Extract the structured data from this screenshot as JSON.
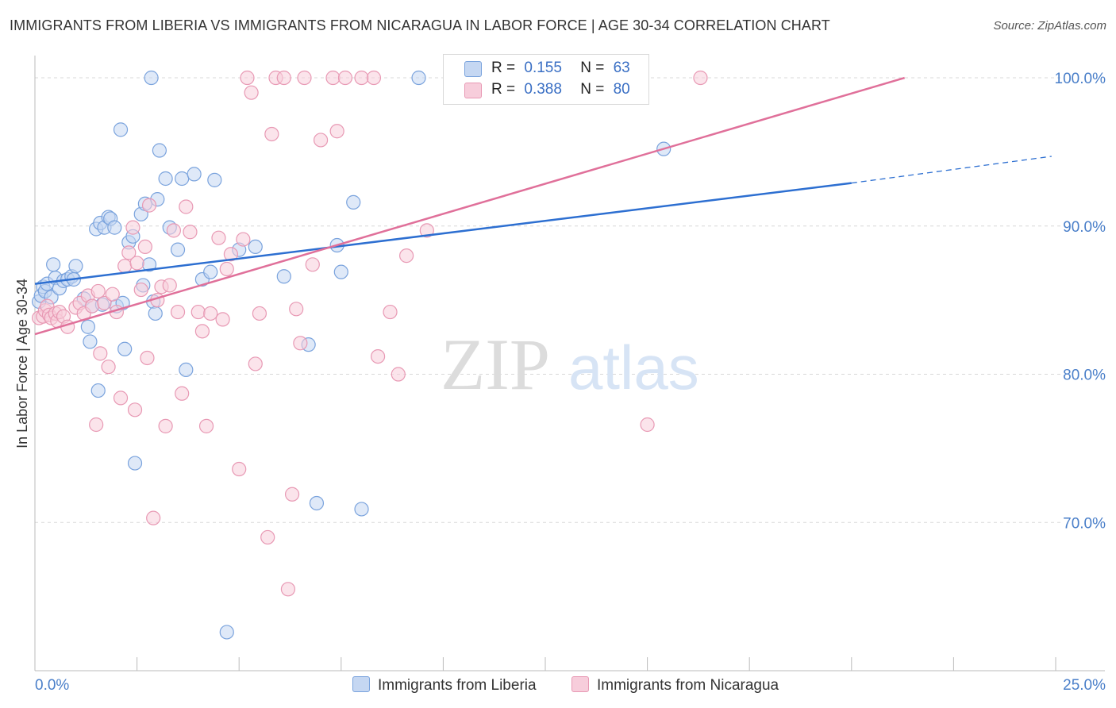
{
  "header": {
    "title": "IMMIGRANTS FROM LIBERIA VS IMMIGRANTS FROM NICARAGUA IN LABOR FORCE | AGE 30-34 CORRELATION CHART",
    "source": "Source: ZipAtlas.com"
  },
  "watermark": {
    "zip": "ZIP",
    "atlas": "atlas"
  },
  "legend": {
    "r_label": "R =",
    "n_label": "N =",
    "liberia": {
      "r": "0.155",
      "n": "63"
    },
    "nicaragua": {
      "r": "0.388",
      "n": "80"
    }
  },
  "colors": {
    "liberia_fill": "#c5d7f2",
    "liberia_stroke": "#7aa3dd",
    "liberia_line": "#2d6fd1",
    "nicaragua_fill": "#f7cddb",
    "nicaragua_stroke": "#e899b4",
    "nicaragua_line": "#e0709a",
    "tick_label": "#4a7fc9",
    "grid": "#d8d8d8"
  },
  "chart_data": {
    "type": "scatter",
    "title": "IMMIGRANTS FROM LIBERIA VS IMMIGRANTS FROM NICARAGUA IN LABOR FORCE | AGE 30-34 CORRELATION CHART",
    "xlabel": "",
    "ylabel": "In Labor Force | Age 30-34",
    "xlim": [
      0,
      25
    ],
    "ylim": [
      60,
      101.5
    ],
    "x_tick_labels": [
      "0.0%",
      "25.0%"
    ],
    "y_ticks": [
      70,
      80,
      90,
      100
    ],
    "y_tick_labels": [
      "70.0%",
      "80.0%",
      "90.0%",
      "100.0%"
    ],
    "series": [
      {
        "name": "Immigrants from Liberia",
        "r": 0.155,
        "n": 63,
        "trend": {
          "x0": 0,
          "y0": 86.1,
          "x1": 20,
          "y1": 92.9,
          "dashed_to_x": 24.9,
          "dashed_to_y": 94.7
        },
        "points": [
          [
            0.1,
            84.9
          ],
          [
            0.15,
            85.3
          ],
          [
            0.2,
            85.9
          ],
          [
            0.25,
            85.6
          ],
          [
            0.3,
            86.1
          ],
          [
            0.4,
            85.2
          ],
          [
            0.45,
            87.4
          ],
          [
            0.5,
            86.5
          ],
          [
            0.6,
            85.8
          ],
          [
            0.7,
            86.3
          ],
          [
            0.8,
            86.4
          ],
          [
            0.9,
            86.6
          ],
          [
            0.95,
            86.4
          ],
          [
            1.0,
            87.3
          ],
          [
            1.2,
            85.1
          ],
          [
            1.3,
            83.2
          ],
          [
            1.35,
            82.2
          ],
          [
            1.4,
            84.6
          ],
          [
            1.5,
            89.8
          ],
          [
            1.55,
            78.9
          ],
          [
            1.6,
            90.2
          ],
          [
            1.65,
            84.7
          ],
          [
            1.7,
            89.9
          ],
          [
            1.8,
            90.6
          ],
          [
            1.85,
            90.5
          ],
          [
            1.95,
            89.9
          ],
          [
            2.0,
            84.6
          ],
          [
            2.1,
            96.5
          ],
          [
            2.15,
            84.8
          ],
          [
            2.2,
            81.7
          ],
          [
            2.3,
            88.9
          ],
          [
            2.4,
            89.3
          ],
          [
            2.45,
            74.0
          ],
          [
            2.6,
            90.8
          ],
          [
            2.65,
            86.0
          ],
          [
            2.7,
            91.5
          ],
          [
            2.8,
            87.4
          ],
          [
            2.85,
            100.0
          ],
          [
            2.9,
            84.9
          ],
          [
            2.95,
            84.1
          ],
          [
            3.0,
            91.8
          ],
          [
            3.05,
            95.1
          ],
          [
            3.2,
            93.2
          ],
          [
            3.3,
            89.9
          ],
          [
            3.5,
            88.4
          ],
          [
            3.6,
            93.2
          ],
          [
            3.7,
            80.3
          ],
          [
            3.9,
            93.5
          ],
          [
            4.1,
            86.4
          ],
          [
            4.3,
            86.9
          ],
          [
            4.4,
            93.1
          ],
          [
            4.7,
            62.6
          ],
          [
            5.0,
            88.4
          ],
          [
            5.4,
            88.6
          ],
          [
            6.1,
            86.6
          ],
          [
            6.7,
            82.0
          ],
          [
            6.9,
            71.3
          ],
          [
            7.4,
            88.7
          ],
          [
            7.5,
            86.9
          ],
          [
            7.8,
            91.6
          ],
          [
            8.0,
            70.9
          ],
          [
            9.4,
            100.0
          ],
          [
            15.4,
            95.2
          ]
        ]
      },
      {
        "name": "Immigrants from Nicaragua",
        "r": 0.388,
        "n": 80,
        "trend": {
          "x0": 0,
          "y0": 82.7,
          "x1": 21.3,
          "y1": 100.0
        },
        "points": [
          [
            0.1,
            83.8
          ],
          [
            0.2,
            83.9
          ],
          [
            0.25,
            84.3
          ],
          [
            0.3,
            84.6
          ],
          [
            0.35,
            84.0
          ],
          [
            0.4,
            83.8
          ],
          [
            0.5,
            84.1
          ],
          [
            0.55,
            83.6
          ],
          [
            0.6,
            84.2
          ],
          [
            0.7,
            83.9
          ],
          [
            0.8,
            83.2
          ],
          [
            1.0,
            84.5
          ],
          [
            1.1,
            84.8
          ],
          [
            1.2,
            84.1
          ],
          [
            1.3,
            85.3
          ],
          [
            1.4,
            84.6
          ],
          [
            1.5,
            76.6
          ],
          [
            1.55,
            85.6
          ],
          [
            1.6,
            81.4
          ],
          [
            1.7,
            84.8
          ],
          [
            1.8,
            80.5
          ],
          [
            1.9,
            85.4
          ],
          [
            2.0,
            84.2
          ],
          [
            2.1,
            78.4
          ],
          [
            2.2,
            87.3
          ],
          [
            2.3,
            88.2
          ],
          [
            2.4,
            89.9
          ],
          [
            2.45,
            77.6
          ],
          [
            2.5,
            87.5
          ],
          [
            2.6,
            85.7
          ],
          [
            2.7,
            88.6
          ],
          [
            2.75,
            81.1
          ],
          [
            2.8,
            91.4
          ],
          [
            2.9,
            70.3
          ],
          [
            3.0,
            85.0
          ],
          [
            3.1,
            85.9
          ],
          [
            3.2,
            76.5
          ],
          [
            3.3,
            86.0
          ],
          [
            3.4,
            89.7
          ],
          [
            3.5,
            84.2
          ],
          [
            3.6,
            78.7
          ],
          [
            3.7,
            91.3
          ],
          [
            3.8,
            89.6
          ],
          [
            4.0,
            84.2
          ],
          [
            4.1,
            82.9
          ],
          [
            4.2,
            76.5
          ],
          [
            4.3,
            84.1
          ],
          [
            4.5,
            89.2
          ],
          [
            4.6,
            83.7
          ],
          [
            4.7,
            87.1
          ],
          [
            4.8,
            88.1
          ],
          [
            5.0,
            73.6
          ],
          [
            5.1,
            89.1
          ],
          [
            5.2,
            100.0
          ],
          [
            5.3,
            99.0
          ],
          [
            5.4,
            80.7
          ],
          [
            5.5,
            84.1
          ],
          [
            5.7,
            69.0
          ],
          [
            5.8,
            96.2
          ],
          [
            5.9,
            100.0
          ],
          [
            6.1,
            100.0
          ],
          [
            6.2,
            65.5
          ],
          [
            6.3,
            71.9
          ],
          [
            6.4,
            84.4
          ],
          [
            6.5,
            82.1
          ],
          [
            6.6,
            100.0
          ],
          [
            6.8,
            87.4
          ],
          [
            7.0,
            95.8
          ],
          [
            7.3,
            100.0
          ],
          [
            7.4,
            96.4
          ],
          [
            7.6,
            100.0
          ],
          [
            8.0,
            100.0
          ],
          [
            8.3,
            100.0
          ],
          [
            8.4,
            81.2
          ],
          [
            8.7,
            84.2
          ],
          [
            8.9,
            80.0
          ],
          [
            9.1,
            88.0
          ],
          [
            9.6,
            89.7
          ],
          [
            15.0,
            76.6
          ],
          [
            16.3,
            100.0
          ]
        ]
      }
    ]
  },
  "bottom_legend": {
    "liberia_label": "Immigrants from Liberia",
    "nicaragua_label": "Immigrants from Nicaragua"
  }
}
